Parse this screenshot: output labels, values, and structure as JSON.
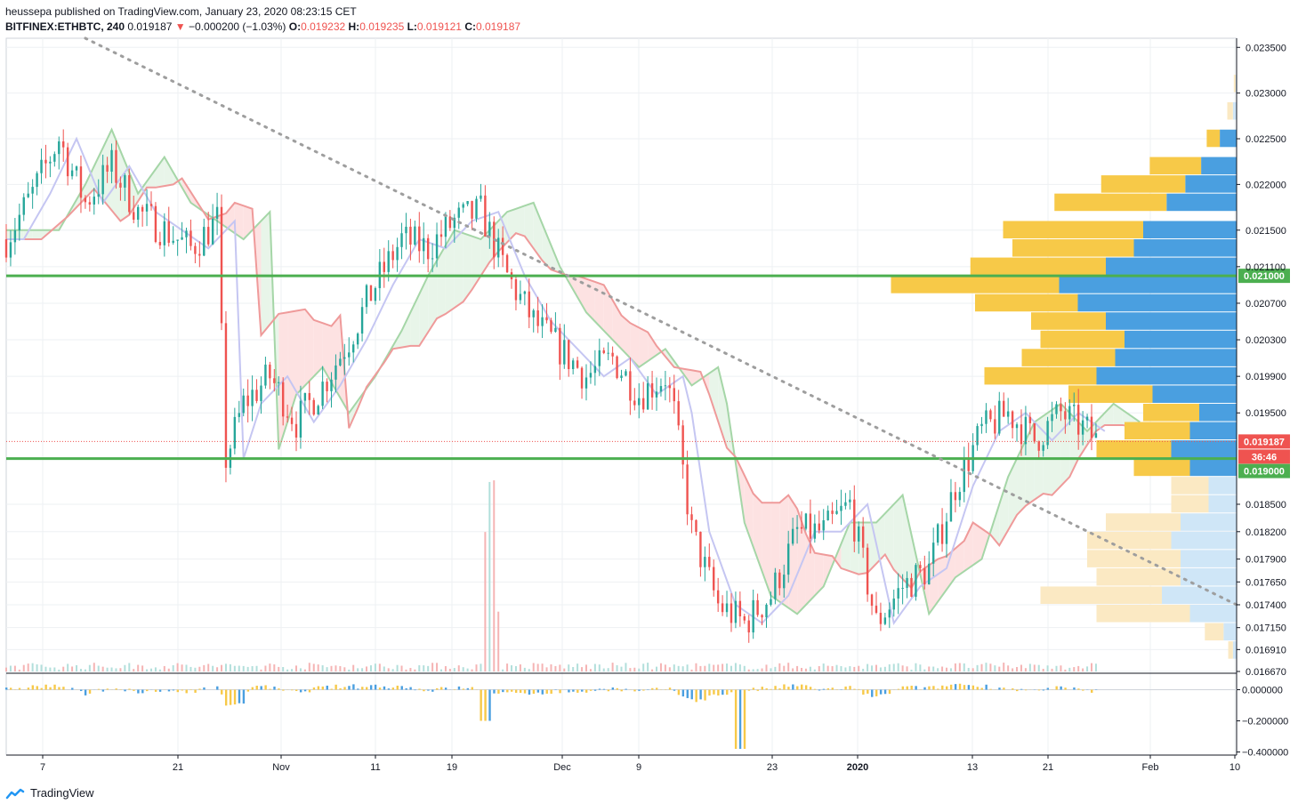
{
  "header": {
    "publisher_line": "heussepa published on TradingView.com, January 23, 2020 08:23:15 CET",
    "symbol": "BITFINEX:ETHBTC, 240",
    "last": "0.019187",
    "change": "−0.000200 (−1.03%)",
    "o_label": "O:",
    "o_value": "0.019232",
    "h_label": "H:",
    "h_value": "0.019235",
    "l_label": "L:",
    "l_value": "0.019121",
    "c_label": "C:",
    "c_value": "0.019187"
  },
  "footer": {
    "brand": "TradingView"
  },
  "colors": {
    "up": "#26a69a",
    "down": "#ef5350",
    "support": "#4caf50",
    "vp_up": "#f7c948",
    "vp_down": "#4a9fe0",
    "trend": "#9e9e9e",
    "kumo_bull": "#e8f5e9",
    "kumo_bear": "#fde2e2"
  },
  "chart_data": {
    "type": "candlestick",
    "symbol": "BITFINEX:ETHBTC",
    "timeframe": "240",
    "ylim": [
      0.01667,
      0.0236
    ],
    "y_ticks": [
      "0.023500",
      "0.023000",
      "0.022500",
      "0.022000",
      "0.021500",
      "0.021100",
      "0.020700",
      "0.020300",
      "0.019900",
      "0.019500",
      "0.018500",
      "0.018200",
      "0.017900",
      "0.017650",
      "0.017400",
      "0.017150",
      "0.016910",
      "0.016670"
    ],
    "y_tick_values": [
      0.0235,
      0.023,
      0.0225,
      0.022,
      0.0215,
      0.0211,
      0.0207,
      0.0203,
      0.0199,
      0.0195,
      0.0185,
      0.0182,
      0.0179,
      0.01765,
      0.0174,
      0.01715,
      0.01691,
      0.01667
    ],
    "x_ticks": [
      "7",
      "21",
      "Nov",
      "11",
      "19",
      "Dec",
      "9",
      "23",
      "2020",
      "13",
      "21",
      "Feb",
      "10"
    ],
    "price_path_days": [
      0,
      3,
      6,
      9,
      12,
      15,
      18,
      21,
      24,
      25,
      27,
      30,
      33,
      36,
      39,
      42,
      45,
      48,
      51,
      54,
      57,
      60,
      63,
      66,
      69,
      72,
      75,
      76,
      78,
      81,
      84,
      87,
      90,
      93,
      96,
      99,
      102,
      105,
      108,
      111,
      114,
      117,
      120,
      123,
      124,
      125,
      126,
      127,
      129
    ],
    "price_path_values": [
      0.0214,
      0.0219,
      0.0225,
      0.0218,
      0.0222,
      0.0217,
      0.0215,
      0.0213,
      0.0216,
      0.019,
      0.0196,
      0.0199,
      0.0194,
      0.0198,
      0.0203,
      0.0209,
      0.0214,
      0.0213,
      0.0216,
      0.0217,
      0.021,
      0.0205,
      0.0202,
      0.0199,
      0.0201,
      0.0197,
      0.0199,
      0.0195,
      0.0182,
      0.0174,
      0.0172,
      0.0175,
      0.0182,
      0.0182,
      0.0185,
      0.0172,
      0.0176,
      0.0178,
      0.0187,
      0.0193,
      0.0195,
      0.0192,
      0.0195,
      0.0193,
      0.0192,
      0.01919,
      0.01919,
      0.01919,
      0.01919
    ],
    "last_price": "0.019187",
    "countdown": "36:46",
    "horizontal_levels": [
      {
        "label": "0.021000",
        "value": 0.021
      },
      {
        "label": "0.019000",
        "value": 0.019
      }
    ],
    "trendline": {
      "from": {
        "day": 9,
        "value": 0.0236
      },
      "to": {
        "day": 140,
        "value": 0.0174
      }
    },
    "volume_profile": [
      {
        "price": 0.0231,
        "up": 2,
        "down": 1
      },
      {
        "price": 0.0228,
        "up": 6,
        "down": 4
      },
      {
        "price": 0.0225,
        "up": 14,
        "down": 18
      },
      {
        "price": 0.0222,
        "up": 55,
        "down": 38
      },
      {
        "price": 0.022,
        "up": 90,
        "down": 55
      },
      {
        "price": 0.0218,
        "up": 120,
        "down": 75
      },
      {
        "price": 0.0215,
        "up": 150,
        "down": 100
      },
      {
        "price": 0.0213,
        "up": 130,
        "down": 110
      },
      {
        "price": 0.0211,
        "up": 145,
        "down": 140
      },
      {
        "price": 0.0209,
        "up": 180,
        "down": 190
      },
      {
        "price": 0.0207,
        "up": 110,
        "down": 170
      },
      {
        "price": 0.0205,
        "up": 80,
        "down": 140
      },
      {
        "price": 0.0203,
        "up": 90,
        "down": 120
      },
      {
        "price": 0.0201,
        "up": 100,
        "down": 130
      },
      {
        "price": 0.0199,
        "up": 120,
        "down": 150
      },
      {
        "price": 0.0197,
        "up": 90,
        "down": 90
      },
      {
        "price": 0.0195,
        "up": 60,
        "down": 40
      },
      {
        "price": 0.0193,
        "up": 70,
        "down": 50
      },
      {
        "price": 0.0191,
        "up": 80,
        "down": 70
      },
      {
        "price": 0.0189,
        "up": 60,
        "down": 50
      },
      {
        "price": 0.0187,
        "up": 40,
        "down": 30
      },
      {
        "price": 0.0185,
        "up": 40,
        "down": 30
      },
      {
        "price": 0.0183,
        "up": 80,
        "down": 60
      },
      {
        "price": 0.0181,
        "up": 90,
        "down": 70
      },
      {
        "price": 0.0179,
        "up": 100,
        "down": 60
      },
      {
        "price": 0.0177,
        "up": 90,
        "down": 60
      },
      {
        "price": 0.0175,
        "up": 130,
        "down": 80
      },
      {
        "price": 0.0173,
        "up": 100,
        "down": 50
      },
      {
        "price": 0.0171,
        "up": 20,
        "down": 14
      },
      {
        "price": 0.0169,
        "up": 5,
        "down": 4
      }
    ],
    "oscillator": {
      "y_ticks": [
        "0.000000",
        "−0.200000",
        "−0.400000"
      ],
      "y_tick_values": [
        0,
        -0.2,
        -0.4
      ],
      "ylim": [
        -0.42,
        0.1
      ]
    }
  }
}
